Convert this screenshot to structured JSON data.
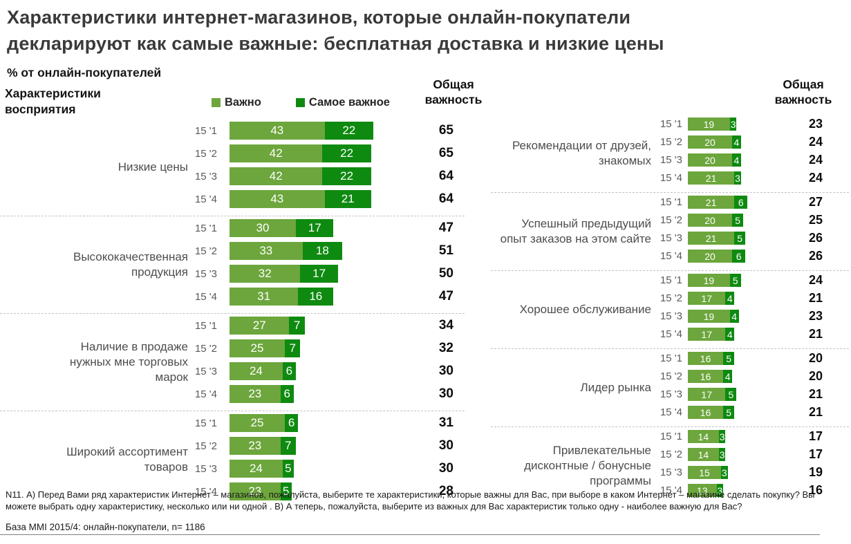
{
  "title": "Характеристики интернет-магазинов, которые онлайн-покупатели\nдекларируют как самые важные: бесплатная доставка и низкие цены",
  "pct_label": "% от онлайн-покупателей",
  "row_axis_label": "Характеристики\nвосприятия",
  "legend": [
    {
      "label": "Важно",
      "color": "#6CA63C"
    },
    {
      "label": "Самое важное",
      "color": "#0E8A10"
    }
  ],
  "total_header": "Общая\nважность",
  "colors": {
    "important": "#6CA63C",
    "most_important": "#0E8A10",
    "separator": "#C2C2C2"
  },
  "footnote": "N11. А) Перед Вами ряд характеристик Интернет – магазинов, пожалуйста, выберите те характеристики, которые важны для Вас, при выборе в каком Интернет – магазине сделать покупку? Вы можете выбрать одну характеристику, несколько или ни одной . В) А теперь, пожалуйста, выберите из важных для Вас характеристик только одну - наиболее важную для Вас?",
  "base_note": "База MMI 2015/4: онлайн-покупатели, n= 1186",
  "chart_data": {
    "type": "bar",
    "orientation": "horizontal",
    "stacked": true,
    "unit": "% от онлайн-покупателей",
    "series": [
      "Важно",
      "Самое важное"
    ],
    "period_labels": [
      "15 '1",
      "15 '2",
      "15 '3",
      "15 '4"
    ],
    "columns": [
      {
        "side": "left",
        "groups": [
          {
            "category": "Низкие цены",
            "rows": [
              {
                "period": "15 '1",
                "values": [
                  43,
                  22
                ],
                "total": 65
              },
              {
                "period": "15 '2",
                "values": [
                  42,
                  22
                ],
                "total": 65
              },
              {
                "period": "15 '3",
                "values": [
                  42,
                  22
                ],
                "total": 64
              },
              {
                "period": "15 '4",
                "values": [
                  43,
                  21
                ],
                "total": 64
              }
            ]
          },
          {
            "category": "Высококачественная продукция",
            "rows": [
              {
                "period": "15 '1",
                "values": [
                  30,
                  17
                ],
                "total": 47
              },
              {
                "period": "15 '2",
                "values": [
                  33,
                  18
                ],
                "total": 51
              },
              {
                "period": "15 '3",
                "values": [
                  32,
                  17
                ],
                "total": 50
              },
              {
                "period": "15 '4",
                "values": [
                  31,
                  16
                ],
                "total": 47
              }
            ]
          },
          {
            "category": "Наличие в продаже нужных мне торговых марок",
            "rows": [
              {
                "period": "15 '1",
                "values": [
                  27,
                  7
                ],
                "total": 34
              },
              {
                "period": "15 '2",
                "values": [
                  25,
                  7
                ],
                "total": 32
              },
              {
                "period": "15 '3",
                "values": [
                  24,
                  6
                ],
                "total": 30
              },
              {
                "period": "15 '4",
                "values": [
                  23,
                  6
                ],
                "total": 30
              }
            ]
          },
          {
            "category": "Широкий ассортимент товаров",
            "rows": [
              {
                "period": "15 '1",
                "values": [
                  25,
                  6
                ],
                "total": 31
              },
              {
                "period": "15 '2",
                "values": [
                  23,
                  7
                ],
                "total": 30
              },
              {
                "period": "15 '3",
                "values": [
                  24,
                  5
                ],
                "total": 30
              },
              {
                "period": "15 '4",
                "values": [
                  23,
                  5
                ],
                "total": 28
              }
            ]
          }
        ]
      },
      {
        "side": "right",
        "groups": [
          {
            "category": "Рекомендации от друзей, знакомых",
            "rows": [
              {
                "period": "15 '1",
                "values": [
                  19,
                  3
                ],
                "total": 23
              },
              {
                "period": "15 '2",
                "values": [
                  20,
                  4
                ],
                "total": 24
              },
              {
                "period": "15 '3",
                "values": [
                  20,
                  4
                ],
                "total": 24
              },
              {
                "period": "15 '4",
                "values": [
                  21,
                  3
                ],
                "total": 24
              }
            ]
          },
          {
            "category": "Успешный предыдущий опыт заказов на этом сайте",
            "rows": [
              {
                "period": "15 '1",
                "values": [
                  21,
                  6
                ],
                "total": 27
              },
              {
                "period": "15 '2",
                "values": [
                  20,
                  5
                ],
                "total": 25
              },
              {
                "period": "15 '3",
                "values": [
                  21,
                  5
                ],
                "total": 26
              },
              {
                "period": "15 '4",
                "values": [
                  20,
                  6
                ],
                "total": 26
              }
            ]
          },
          {
            "category": "Хорошее обслуживание",
            "rows": [
              {
                "period": "15 '1",
                "values": [
                  19,
                  5
                ],
                "total": 24
              },
              {
                "period": "15 '2",
                "values": [
                  17,
                  4
                ],
                "total": 21
              },
              {
                "period": "15 '3",
                "values": [
                  19,
                  4
                ],
                "total": 23
              },
              {
                "period": "15 '4",
                "values": [
                  17,
                  4
                ],
                "total": 21
              }
            ]
          },
          {
            "category": "Лидер рынка",
            "rows": [
              {
                "period": "15 '1",
                "values": [
                  16,
                  5
                ],
                "total": 20
              },
              {
                "period": "15 '2",
                "values": [
                  16,
                  4
                ],
                "total": 20
              },
              {
                "period": "15 '3",
                "values": [
                  17,
                  5
                ],
                "total": 21
              },
              {
                "period": "15 '4",
                "values": [
                  16,
                  5
                ],
                "total": 21
              }
            ]
          },
          {
            "category": "Привлекательные дисконтные / бонусные программы",
            "rows": [
              {
                "period": "15 '1",
                "values": [
                  14,
                  3
                ],
                "total": 17
              },
              {
                "period": "15 '2",
                "values": [
                  14,
                  3
                ],
                "total": 17
              },
              {
                "period": "15 '3",
                "values": [
                  15,
                  3
                ],
                "total": 19
              },
              {
                "period": "15 '4",
                "values": [
                  13,
                  3
                ],
                "total": 16
              }
            ]
          }
        ]
      }
    ]
  }
}
